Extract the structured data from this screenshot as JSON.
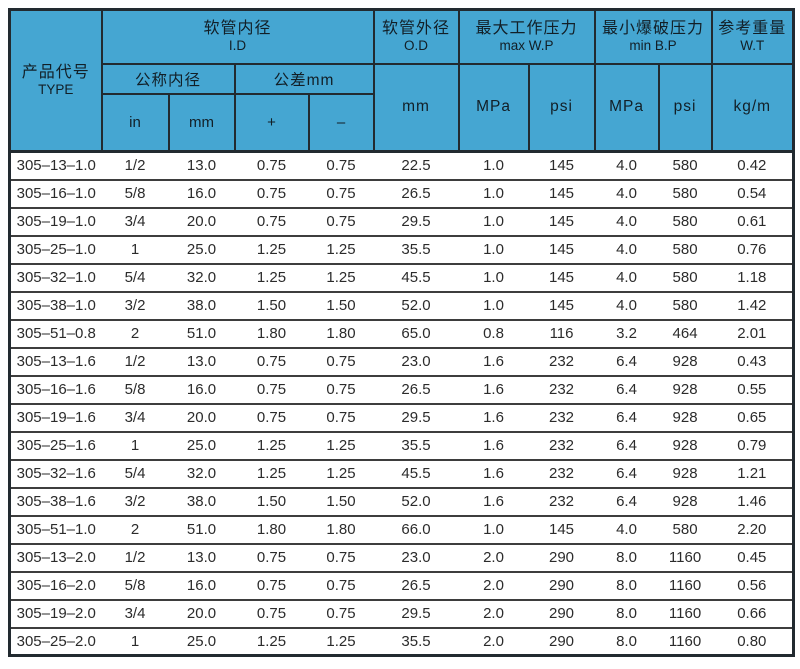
{
  "colors": {
    "header_bg": "#45a6d2",
    "outer_border": "#222a30",
    "row_line": "#3d3d3d",
    "body_text": "#2b2b2b",
    "header_text": "#121f27",
    "page_bg": "#ffffff"
  },
  "header": {
    "type_zh": "产品代号",
    "type_en": "TYPE",
    "id_zh": "软管内径",
    "id_en": "I.D",
    "nominal": "公称内径",
    "tolerance": "公差mm",
    "unit_in": "in",
    "unit_mm": "mm",
    "plus": "+",
    "minus": "–",
    "od_zh": "软管外径",
    "od_en": "O.D",
    "unit_od": "mm",
    "maxwp_zh": "最大工作压力",
    "maxwp_en": "max W.P",
    "unit_wp_mpa": "MPa",
    "unit_wp_psi": "psi",
    "minbp_zh": "最小爆破压力",
    "minbp_en": "min B.P",
    "unit_bp_mpa": "MPa",
    "unit_bp_psi": "psi",
    "wt_zh": "参考重量",
    "wt_en": "W.T",
    "unit_wt": "kg/m"
  },
  "chart_data": {
    "type": "table",
    "columns": [
      "产品代号 TYPE",
      "软管内径 I.D 公称内径 in",
      "软管内径 I.D 公称内径 mm",
      "软管内径 I.D 公差mm +",
      "软管内径 I.D 公差mm –",
      "软管外径 O.D mm",
      "最大工作压力 max W.P MPa",
      "最大工作压力 max W.P psi",
      "最小爆破压力 min B.P MPa",
      "最小爆破压力 min B.P psi",
      "参考重量 W.T kg/m"
    ],
    "rows": [
      [
        "305–13–1.0",
        "1/2",
        "13.0",
        "0.75",
        "0.75",
        "22.5",
        "1.0",
        "145",
        "4.0",
        "580",
        "0.42"
      ],
      [
        "305–16–1.0",
        "5/8",
        "16.0",
        "0.75",
        "0.75",
        "26.5",
        "1.0",
        "145",
        "4.0",
        "580",
        "0.54"
      ],
      [
        "305–19–1.0",
        "3/4",
        "20.0",
        "0.75",
        "0.75",
        "29.5",
        "1.0",
        "145",
        "4.0",
        "580",
        "0.61"
      ],
      [
        "305–25–1.0",
        "1",
        "25.0",
        "1.25",
        "1.25",
        "35.5",
        "1.0",
        "145",
        "4.0",
        "580",
        "0.76"
      ],
      [
        "305–32–1.0",
        "5/4",
        "32.0",
        "1.25",
        "1.25",
        "45.5",
        "1.0",
        "145",
        "4.0",
        "580",
        "1.18"
      ],
      [
        "305–38–1.0",
        "3/2",
        "38.0",
        "1.50",
        "1.50",
        "52.0",
        "1.0",
        "145",
        "4.0",
        "580",
        "1.42"
      ],
      [
        "305–51–0.8",
        "2",
        "51.0",
        "1.80",
        "1.80",
        "65.0",
        "0.8",
        "116",
        "3.2",
        "464",
        "2.01"
      ],
      [
        "305–13–1.6",
        "1/2",
        "13.0",
        "0.75",
        "0.75",
        "23.0",
        "1.6",
        "232",
        "6.4",
        "928",
        "0.43"
      ],
      [
        "305–16–1.6",
        "5/8",
        "16.0",
        "0.75",
        "0.75",
        "26.5",
        "1.6",
        "232",
        "6.4",
        "928",
        "0.55"
      ],
      [
        "305–19–1.6",
        "3/4",
        "20.0",
        "0.75",
        "0.75",
        "29.5",
        "1.6",
        "232",
        "6.4",
        "928",
        "0.65"
      ],
      [
        "305–25–1.6",
        "1",
        "25.0",
        "1.25",
        "1.25",
        "35.5",
        "1.6",
        "232",
        "6.4",
        "928",
        "0.79"
      ],
      [
        "305–32–1.6",
        "5/4",
        "32.0",
        "1.25",
        "1.25",
        "45.5",
        "1.6",
        "232",
        "6.4",
        "928",
        "1.21"
      ],
      [
        "305–38–1.6",
        "3/2",
        "38.0",
        "1.50",
        "1.50",
        "52.0",
        "1.6",
        "232",
        "6.4",
        "928",
        "1.46"
      ],
      [
        "305–51–1.0",
        "2",
        "51.0",
        "1.80",
        "1.80",
        "66.0",
        "1.0",
        "145",
        "4.0",
        "580",
        "2.20"
      ],
      [
        "305–13–2.0",
        "1/2",
        "13.0",
        "0.75",
        "0.75",
        "23.0",
        "2.0",
        "290",
        "8.0",
        "1160",
        "0.45"
      ],
      [
        "305–16–2.0",
        "5/8",
        "16.0",
        "0.75",
        "0.75",
        "26.5",
        "2.0",
        "290",
        "8.0",
        "1160",
        "0.56"
      ],
      [
        "305–19–2.0",
        "3/4",
        "20.0",
        "0.75",
        "0.75",
        "29.5",
        "2.0",
        "290",
        "8.0",
        "1160",
        "0.66"
      ],
      [
        "305–25–2.0",
        "1",
        "25.0",
        "1.25",
        "1.25",
        "35.5",
        "2.0",
        "290",
        "8.0",
        "1160",
        "0.80"
      ]
    ]
  }
}
